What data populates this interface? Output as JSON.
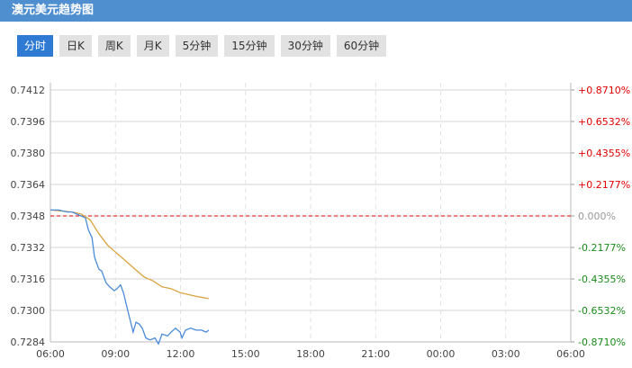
{
  "header": {
    "title": "澳元美元趋势图"
  },
  "tabs": [
    {
      "label": "分时",
      "active": true
    },
    {
      "label": "日K"
    },
    {
      "label": "周K"
    },
    {
      "label": "月K"
    },
    {
      "label": "5分钟"
    },
    {
      "label": "15分钟"
    },
    {
      "label": "30分钟"
    },
    {
      "label": "60分钟"
    }
  ],
  "chart_data": {
    "type": "line",
    "ylim": [
      0.7284,
      0.7412
    ],
    "y_ticks": [
      "0.7412",
      "0.7396",
      "0.7380",
      "0.7364",
      "0.7348",
      "0.7332",
      "0.7316",
      "0.7300",
      "0.7284"
    ],
    "pct_ticks": [
      "+0.8710%",
      "+0.6532%",
      "+0.4355%",
      "+0.2177%",
      "0.000%",
      "-0.2177%",
      "-0.4355%",
      "-0.6532%",
      "-0.8710%"
    ],
    "x_ticks": [
      "06:00",
      "09:00",
      "12:00",
      "15:00",
      "18:00",
      "21:00",
      "00:00",
      "03:00",
      "06:00"
    ],
    "reference": 0.7348,
    "colors": {
      "price": "#4a8ad8",
      "average": "#d9a441",
      "reference": "#e00000",
      "up": "#e00000",
      "down": "#1a8a1a"
    },
    "series": [
      {
        "key": "price",
        "points": [
          [
            "06:00",
            0.7351
          ],
          [
            "06:22",
            0.7351
          ],
          [
            "06:47",
            0.735
          ],
          [
            "07:00",
            0.735
          ],
          [
            "07:25",
            0.7348
          ],
          [
            "07:37",
            0.7347
          ],
          [
            "07:45",
            0.7341
          ],
          [
            "07:55",
            0.7337
          ],
          [
            "08:02",
            0.7327
          ],
          [
            "08:14",
            0.7321
          ],
          [
            "08:22",
            0.732
          ],
          [
            "08:34",
            0.7314
          ],
          [
            "08:44",
            0.7312
          ],
          [
            "08:57",
            0.731
          ],
          [
            "09:04",
            0.7311
          ],
          [
            "09:14",
            0.7313
          ],
          [
            "09:22",
            0.7309
          ],
          [
            "09:34",
            0.73
          ],
          [
            "09:49",
            0.7289
          ],
          [
            "09:57",
            0.7294
          ],
          [
            "10:06",
            0.7293
          ],
          [
            "10:14",
            0.7291
          ],
          [
            "10:24",
            0.7286
          ],
          [
            "10:36",
            0.7285
          ],
          [
            "10:49",
            0.7286
          ],
          [
            "10:59",
            0.7283
          ],
          [
            "11:09",
            0.7288
          ],
          [
            "11:24",
            0.7287
          ],
          [
            "11:34",
            0.7289
          ],
          [
            "11:46",
            0.7291
          ],
          [
            "11:59",
            0.7289
          ],
          [
            "12:04",
            0.7286
          ],
          [
            "12:14",
            0.729
          ],
          [
            "12:28",
            0.7291
          ],
          [
            "12:43",
            0.729
          ],
          [
            "12:58",
            0.729
          ],
          [
            "13:11",
            0.7289
          ],
          [
            "13:18",
            0.729
          ]
        ]
      },
      {
        "key": "average",
        "points": [
          [
            "06:00",
            0.7351
          ],
          [
            "07:00",
            0.735
          ],
          [
            "07:25",
            0.7349
          ],
          [
            "07:50",
            0.7346
          ],
          [
            "08:14",
            0.7339
          ],
          [
            "08:39",
            0.7333
          ],
          [
            "09:04",
            0.7329
          ],
          [
            "09:29",
            0.7325
          ],
          [
            "09:54",
            0.7321
          ],
          [
            "10:19",
            0.7317
          ],
          [
            "10:44",
            0.7315
          ],
          [
            "11:09",
            0.7312
          ],
          [
            "11:34",
            0.7311
          ],
          [
            "11:59",
            0.7309
          ],
          [
            "12:23",
            0.7308
          ],
          [
            "12:48",
            0.7307
          ],
          [
            "13:18",
            0.7306
          ]
        ]
      }
    ]
  }
}
